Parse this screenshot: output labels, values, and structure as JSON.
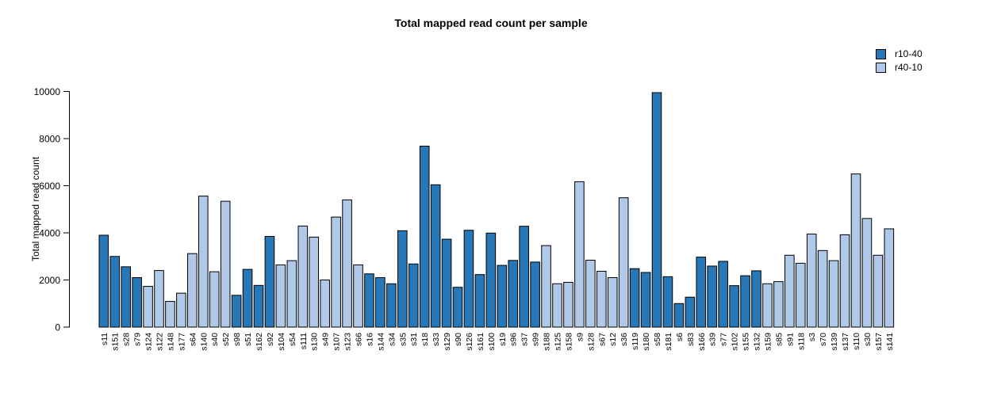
{
  "chart_data": {
    "type": "bar",
    "title": "Total mapped read count per sample",
    "xlabel": "",
    "ylabel": "Total mapped read count",
    "ylim": [
      0,
      10000
    ],
    "yticks": [
      0,
      2000,
      4000,
      6000,
      8000,
      10000
    ],
    "grid": false,
    "legend_position": "top-right",
    "series": [
      {
        "name": "r10-40",
        "color": "#2878b8"
      },
      {
        "name": "r40-10",
        "color": "#b0c9e8"
      }
    ],
    "bar_border_color": "#000000",
    "categories": [
      "s11",
      "s151",
      "s28",
      "s79",
      "s124",
      "s122",
      "s148",
      "s177",
      "s64",
      "s140",
      "s40",
      "s52",
      "s98",
      "s51",
      "s162",
      "s92",
      "s104",
      "s54",
      "s111",
      "s130",
      "s49",
      "s107",
      "s123",
      "s66",
      "s16",
      "s144",
      "s34",
      "s35",
      "s31",
      "s18",
      "s33",
      "s129",
      "s90",
      "s126",
      "s161",
      "s100",
      "s19",
      "s96",
      "s37",
      "s99",
      "s188",
      "s125",
      "s158",
      "s9",
      "s128",
      "s67",
      "s12",
      "s36",
      "s119",
      "s180",
      "s58",
      "s181",
      "s6",
      "s83",
      "s166",
      "s39",
      "s77",
      "s102",
      "s155",
      "s132",
      "s159",
      "s85",
      "s91",
      "s118",
      "s3",
      "s70",
      "s139",
      "s137",
      "s110",
      "s30",
      "s157",
      "s141"
    ],
    "values": [
      3900,
      3000,
      2560,
      2100,
      1730,
      2400,
      1090,
      1440,
      3120,
      5560,
      2350,
      5340,
      1350,
      2450,
      1770,
      3850,
      2640,
      2820,
      4290,
      3820,
      2000,
      4670,
      5400,
      2640,
      2260,
      2100,
      1840,
      4090,
      2680,
      7680,
      6040,
      3730,
      1690,
      4110,
      2230,
      3990,
      2620,
      2830,
      4280,
      2760,
      3460,
      1840,
      1900,
      6170,
      2840,
      2370,
      2100,
      5490,
      2480,
      2320,
      9950,
      2140,
      1000,
      1270,
      2970,
      2590,
      2790,
      1760,
      2180,
      2390,
      1840,
      1930,
      3050,
      2710,
      3950,
      3250,
      2820,
      3920,
      6500,
      4610,
      3050,
      4170
    ],
    "groups": [
      "r10-40",
      "r10-40",
      "r10-40",
      "r10-40",
      "r40-10",
      "r40-10",
      "r40-10",
      "r40-10",
      "r40-10",
      "r40-10",
      "r40-10",
      "r40-10",
      "r10-40",
      "r10-40",
      "r10-40",
      "r10-40",
      "r40-10",
      "r40-10",
      "r40-10",
      "r40-10",
      "r40-10",
      "r40-10",
      "r40-10",
      "r40-10",
      "r10-40",
      "r10-40",
      "r10-40",
      "r10-40",
      "r10-40",
      "r10-40",
      "r10-40",
      "r10-40",
      "r10-40",
      "r10-40",
      "r10-40",
      "r10-40",
      "r10-40",
      "r10-40",
      "r10-40",
      "r10-40",
      "r40-10",
      "r40-10",
      "r40-10",
      "r40-10",
      "r40-10",
      "r40-10",
      "r40-10",
      "r40-10",
      "r10-40",
      "r10-40",
      "r10-40",
      "r10-40",
      "r10-40",
      "r10-40",
      "r10-40",
      "r10-40",
      "r10-40",
      "r10-40",
      "r10-40",
      "r10-40",
      "r40-10",
      "r40-10",
      "r40-10",
      "r40-10",
      "r40-10",
      "r40-10",
      "r40-10",
      "r40-10",
      "r40-10",
      "r40-10",
      "r40-10",
      "r40-10"
    ]
  }
}
